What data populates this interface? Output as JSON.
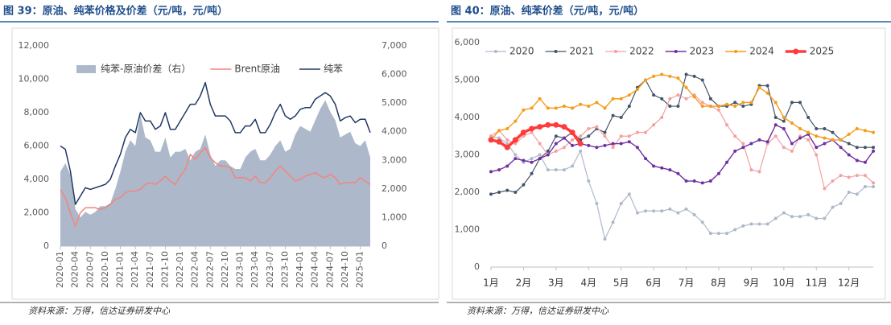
{
  "chart_data": [
    {
      "type": "line",
      "title": "图 39：原油、纯苯价格及价差（元/吨，元/吨）",
      "source": "资料来源：万得，信达证券研发中心",
      "categories": [
        "2020-01",
        null,
        null,
        "2020-04",
        null,
        null,
        "2020-07",
        null,
        null,
        "2020-10",
        null,
        null,
        "2021-01",
        null,
        null,
        "2021-04",
        null,
        null,
        "2021-07",
        null,
        null,
        "2021-10",
        null,
        null,
        "2022-01",
        null,
        null,
        "2022-04",
        null,
        null,
        "2022-07",
        null,
        null,
        "2022-10",
        null,
        null,
        "2023-01",
        null,
        null,
        "2023-04",
        null,
        null,
        "2023-07",
        null,
        null,
        "2023-10",
        null,
        null,
        "2024-01",
        null,
        null,
        "2024-04",
        null,
        null,
        "2024-07",
        null,
        null,
        "2024-10",
        null,
        null,
        "2025-01",
        null,
        null
      ],
      "ylim": [
        0,
        12000
      ],
      "yticks": [
        0,
        {
          "value": 2000,
          "label": "2,000"
        },
        {
          "value": 4000,
          "label": "4,000"
        },
        {
          "value": 6000,
          "label": "6,000"
        },
        {
          "value": 8000,
          "label": "8,000"
        },
        {
          "value": 10000,
          "label": "10,000"
        },
        {
          "value": 12000,
          "label": "12,000"
        }
      ],
      "y2lim": [
        0,
        7000
      ],
      "y2ticks": [
        0,
        {
          "value": 1000,
          "label": "1,000"
        },
        {
          "value": 2000,
          "label": "2,000"
        },
        {
          "value": 3000,
          "label": "3,000"
        },
        {
          "value": 4000,
          "label": "4,000"
        },
        {
          "value": 5000,
          "label": "5,000"
        },
        {
          "value": 6000,
          "label": "6,000"
        },
        {
          "value": 7000,
          "label": "7,000"
        }
      ],
      "series": [
        {
          "name": "纯苯-原油价差（右）",
          "color": "#adb9ca",
          "style": "area",
          "axis": "y2",
          "values": [
            2600,
            2900,
            2500,
            1300,
            1000,
            1200,
            1100,
            1200,
            1400,
            1400,
            1500,
            2000,
            2600,
            3300,
            3700,
            3500,
            4600,
            3800,
            3700,
            3300,
            3300,
            3800,
            3100,
            3300,
            3300,
            3400,
            3000,
            3300,
            3400,
            3900,
            3200,
            2800,
            3000,
            3000,
            2800,
            2700,
            2700,
            3100,
            3300,
            3400,
            3000,
            3000,
            3200,
            3500,
            3700,
            3300,
            3400,
            3900,
            4200,
            4100,
            4000,
            4400,
            4800,
            5100,
            4700,
            4400,
            3800,
            3900,
            4000,
            3600,
            3500,
            3700,
            3100
          ]
        },
        {
          "name": "Brent原油",
          "color": "#f4837d",
          "style": "line",
          "values": [
            3400,
            2900,
            2000,
            1200,
            2000,
            2300,
            2300,
            2300,
            2200,
            2300,
            2500,
            2800,
            2900,
            3200,
            3300,
            3300,
            3400,
            3700,
            3800,
            3700,
            3900,
            4200,
            3900,
            3700,
            4200,
            4600,
            5500,
            5200,
            5600,
            5900,
            5300,
            5000,
            4800,
            4800,
            4700,
            4100,
            4100,
            4100,
            3900,
            4200,
            3800,
            3800,
            4100,
            4500,
            4800,
            4500,
            4200,
            3900,
            4000,
            4200,
            4300,
            4400,
            4200,
            4100,
            4300,
            4100,
            3700,
            3800,
            3800,
            3800,
            4100,
            3900,
            3700
          ]
        },
        {
          "name": "纯苯",
          "color": "#203864",
          "style": "line",
          "values": [
            6000,
            5800,
            4500,
            2500,
            3000,
            3500,
            3400,
            3500,
            3600,
            3700,
            4000,
            4800,
            5500,
            6500,
            7000,
            6800,
            8000,
            7500,
            7500,
            7000,
            7200,
            8000,
            7000,
            7000,
            7500,
            8000,
            8500,
            8500,
            9000,
            9800,
            8500,
            7800,
            7800,
            7800,
            7500,
            6800,
            6800,
            7200,
            7200,
            7600,
            6800,
            6800,
            7300,
            8000,
            8500,
            7800,
            7600,
            7800,
            8200,
            8300,
            8300,
            8800,
            9000,
            9200,
            9000,
            8500,
            7500,
            7700,
            7800,
            7400,
            7600,
            7600,
            6800
          ]
        }
      ]
    },
    {
      "type": "line",
      "title": "图 40：原油、纯苯价差（元/吨，元/吨）",
      "source": "资料来源：万得，信达证券研发中心",
      "categories": [
        "1月",
        null,
        null,
        null,
        "2月",
        null,
        null,
        null,
        "3月",
        null,
        null,
        null,
        "4月",
        null,
        null,
        null,
        "5月",
        null,
        null,
        null,
        "6月",
        null,
        null,
        null,
        "7月",
        null,
        null,
        null,
        "8月",
        null,
        null,
        null,
        "9月",
        null,
        null,
        null,
        "10月",
        null,
        null,
        null,
        "11月",
        null,
        null,
        null,
        "12月",
        null,
        null,
        null
      ],
      "ylim": [
        0,
        6000
      ],
      "yticks": [
        0,
        {
          "value": 1000,
          "label": "1,000"
        },
        {
          "value": 2000,
          "label": "2,000"
        },
        {
          "value": 3000,
          "label": "3,000"
        },
        {
          "value": 4000,
          "label": "4,000"
        },
        {
          "value": 5000,
          "label": "5,000"
        },
        {
          "value": 6000,
          "label": "6,000"
        }
      ],
      "markers": true,
      "series": [
        {
          "name": "2020",
          "color": "#adb9ca",
          "style": "line",
          "line_width": 1.2,
          "values": [
            3500,
            3450,
            3300,
            3000,
            2800,
            2900,
            3000,
            2600,
            2600,
            2600,
            2700,
            3100,
            2300,
            1700,
            750,
            1200,
            1700,
            1950,
            1450,
            1500,
            1500,
            1500,
            1550,
            1450,
            1550,
            1400,
            1200,
            900,
            900,
            900,
            1000,
            1100,
            1150,
            1150,
            1150,
            1300,
            1450,
            1350,
            1350,
            1400,
            1300,
            1300,
            1600,
            1700,
            2000,
            1950,
            2150,
            2150
          ]
        },
        {
          "name": "2021",
          "color": "#44546a",
          "style": "line",
          "line_width": 1.2,
          "values": [
            1950,
            2000,
            2050,
            2000,
            2200,
            2500,
            2900,
            3100,
            3500,
            3450,
            3600,
            3400,
            3500,
            3700,
            3600,
            4050,
            4000,
            4300,
            4800,
            5000,
            4600,
            4500,
            4300,
            4300,
            5150,
            5100,
            5000,
            4500,
            4300,
            4300,
            4400,
            4300,
            4350,
            4850,
            4850,
            4000,
            3900,
            4400,
            4400,
            4000,
            3700,
            3700,
            3600,
            3400,
            3300,
            3200,
            3200,
            3200
          ]
        },
        {
          "name": "2022",
          "color": "#f4a0a0",
          "style": "line",
          "line_width": 1.2,
          "values": [
            3500,
            3650,
            3400,
            3300,
            3500,
            3600,
            3300,
            3000,
            3100,
            3200,
            3400,
            3500,
            3700,
            3750,
            3500,
            3200,
            3500,
            3500,
            3600,
            3600,
            3800,
            4000,
            4500,
            4600,
            4500,
            4600,
            4400,
            4300,
            4200,
            3800,
            3500,
            3300,
            2600,
            2550,
            3300,
            3500,
            3200,
            3100,
            3500,
            3400,
            3000,
            2100,
            2300,
            2450,
            2400,
            2450,
            2450,
            2250
          ]
        },
        {
          "name": "2023",
          "color": "#7030a0",
          "style": "line",
          "line_width": 1.4,
          "values": [
            2550,
            2600,
            2700,
            2900,
            2850,
            2800,
            2900,
            3000,
            3300,
            3450,
            3250,
            3300,
            3250,
            3200,
            3250,
            3300,
            3300,
            3350,
            3200,
            2900,
            2700,
            2650,
            2600,
            2500,
            2300,
            2300,
            2250,
            2300,
            2500,
            2800,
            3100,
            3200,
            3300,
            3400,
            3350,
            3800,
            3700,
            3300,
            3450,
            3550,
            3200,
            3300,
            3400,
            3200,
            3000,
            2850,
            2800,
            3100
          ]
        },
        {
          "name": "2024",
          "color": "#f59c1a",
          "style": "line",
          "line_width": 1.4,
          "values": [
            3400,
            3650,
            3700,
            3900,
            4200,
            4250,
            4500,
            4250,
            4250,
            4300,
            4250,
            4350,
            4300,
            4400,
            4250,
            4500,
            4500,
            4600,
            4750,
            5000,
            5100,
            5150,
            5100,
            5050,
            4800,
            4550,
            4300,
            4300,
            4300,
            4350,
            4300,
            4400,
            4400,
            4800,
            4650,
            4400,
            4000,
            3850,
            3700,
            3600,
            3500,
            3450,
            3400,
            3400,
            3550,
            3700,
            3650,
            3600
          ]
        },
        {
          "name": "2025",
          "color": "#ff3b3b",
          "style": "line",
          "line_width": 3.5,
          "values": [
            3400,
            3350,
            3200,
            3400,
            3600,
            3700,
            3750,
            3800,
            3800,
            3750,
            3600,
            3300,
            null,
            null,
            null,
            null,
            null,
            null,
            null,
            null,
            null,
            null,
            null,
            null,
            null,
            null,
            null,
            null,
            null,
            null,
            null,
            null,
            null,
            null,
            null,
            null,
            null,
            null,
            null,
            null,
            null,
            null,
            null,
            null,
            null,
            null,
            null,
            null
          ]
        }
      ]
    }
  ]
}
